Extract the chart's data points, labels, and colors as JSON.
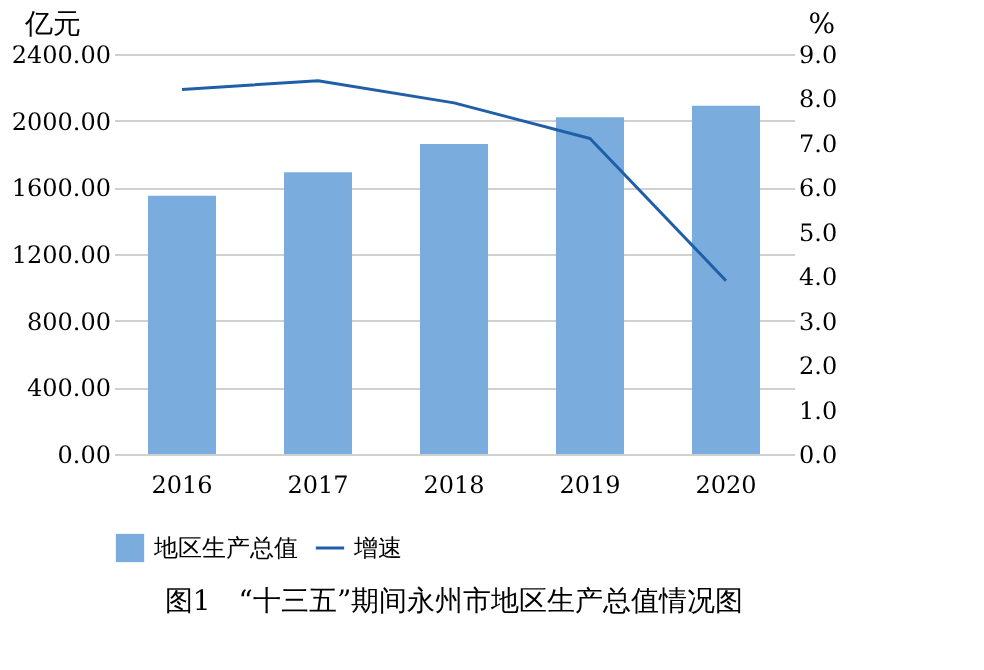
{
  "chart_data": {
    "type": "bar",
    "title": "图1　“十三五”期间永州市地区生产总值情况图",
    "ylabel": "亿元",
    "y2label": "%",
    "categories": [
      "2016",
      "2017",
      "2018",
      "2019",
      "2020"
    ],
    "series": [
      {
        "name": "地区生产总值",
        "color": "#7aaddd",
        "values": [
          1550,
          1690,
          1860,
          2020,
          2090
        ]
      },
      {
        "name": "增速",
        "type": "line",
        "axis": "y2",
        "color": "#1f5fa8",
        "values": [
          8.2,
          8.4,
          7.9,
          7.1,
          3.9
        ]
      }
    ],
    "ylim": [
      0,
      2400
    ],
    "yticks": [
      {
        "value": 0,
        "label": "0.00"
      },
      {
        "value": 400,
        "label": "400.00"
      },
      {
        "value": 800,
        "label": "800.00"
      },
      {
        "value": 1200,
        "label": "1200.00"
      },
      {
        "value": 1600,
        "label": "1600.00"
      },
      {
        "value": 2000,
        "label": "2000.00"
      },
      {
        "value": 2400,
        "label": "2400.00"
      }
    ],
    "y2lim": [
      0,
      9
    ],
    "y2ticks": [
      {
        "value": 0,
        "label": "0.0"
      },
      {
        "value": 1,
        "label": "1.0"
      },
      {
        "value": 2,
        "label": "2.0"
      },
      {
        "value": 3,
        "label": "3.0"
      },
      {
        "value": 4,
        "label": "4.0"
      },
      {
        "value": 5,
        "label": "5.0"
      },
      {
        "value": 6,
        "label": "6.0"
      },
      {
        "value": 7,
        "label": "7.0"
      },
      {
        "value": 8,
        "label": "8.0"
      },
      {
        "value": 9,
        "label": "9.0"
      }
    ],
    "grid": "y",
    "legend": "bottom",
    "marker": "none"
  }
}
